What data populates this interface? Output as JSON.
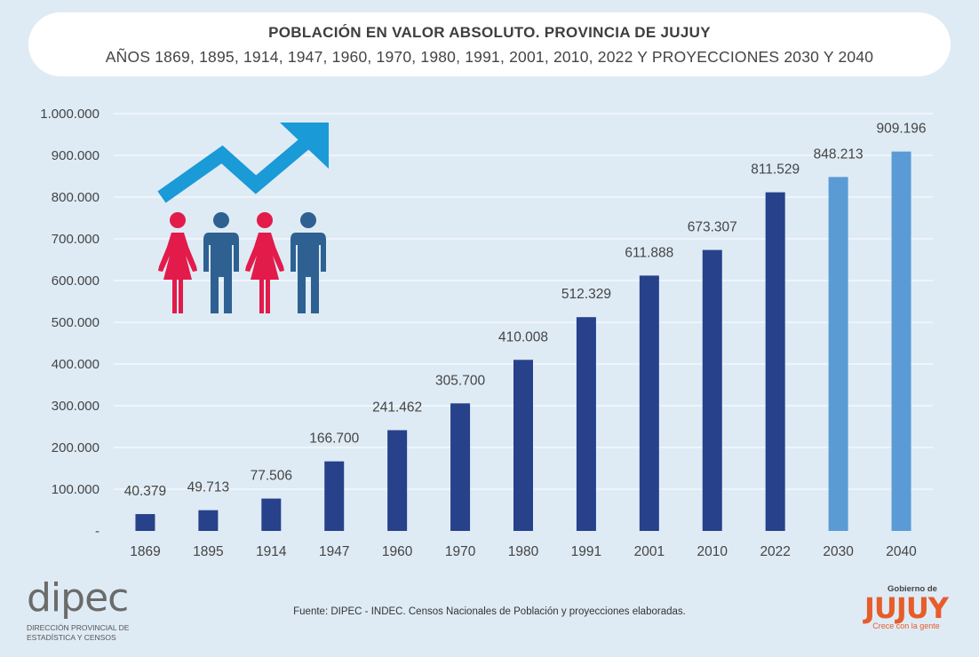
{
  "header": {
    "title": "POBLACIÓN EN VALOR ABSOLUTO. PROVINCIA DE JUJUY",
    "subtitle": "AÑOS 1869, 1895, 1914, 1947, 1960, 1970, 1980, 1991, 2001, 2010, 2022 Y PROYECCIONES 2030 Y 2040"
  },
  "chart_data": {
    "type": "bar",
    "categories": [
      "1869",
      "1895",
      "1914",
      "1947",
      "1960",
      "1970",
      "1980",
      "1991",
      "2001",
      "2010",
      "2022",
      "2030",
      "2040"
    ],
    "values": [
      40379,
      49713,
      77506,
      166700,
      241462,
      305700,
      410008,
      512329,
      611888,
      673307,
      811529,
      848213,
      909196
    ],
    "value_labels": [
      "40.379",
      "49.713",
      "77.506",
      "166.700",
      "241.462",
      "305.700",
      "410.008",
      "512.329",
      "611.888",
      "673.307",
      "811.529",
      "848.213",
      "909.196"
    ],
    "y_ticks": [
      0,
      100000,
      200000,
      300000,
      400000,
      500000,
      600000,
      700000,
      800000,
      900000,
      1000000
    ],
    "y_tick_labels": [
      "-",
      "100.000",
      "200.000",
      "300.000",
      "400.000",
      "500.000",
      "600.000",
      "700.000",
      "800.000",
      "900.000",
      "1.000.000"
    ],
    "ylim": [
      0,
      1000000
    ],
    "grid": true,
    "colors": {
      "census": "#27418b",
      "projection": "#5b9bd5",
      "grid": "#ffffff",
      "text": "#444444"
    },
    "projection_categories": [
      "2030",
      "2040"
    ]
  },
  "illustration": {
    "arrow_color": "#1a9ad7",
    "female_color": "#e21b4a",
    "male_color": "#2e6191",
    "icons": [
      "trend-arrow-icon",
      "woman-icon",
      "man-icon",
      "woman-icon",
      "man-icon"
    ]
  },
  "footer": {
    "source": "Fuente: DIPEC - INDEC. Censos Nacionales de Población y proyecciones elaboradas.",
    "dipec_word": "dipec",
    "dipec_line1": "Dirección Provincial de",
    "dipec_line2": "Estadística y Censos",
    "gov_top": "Gobierno de",
    "gov_word": "JUJUY",
    "gov_tagline": "Crece con la gente"
  }
}
